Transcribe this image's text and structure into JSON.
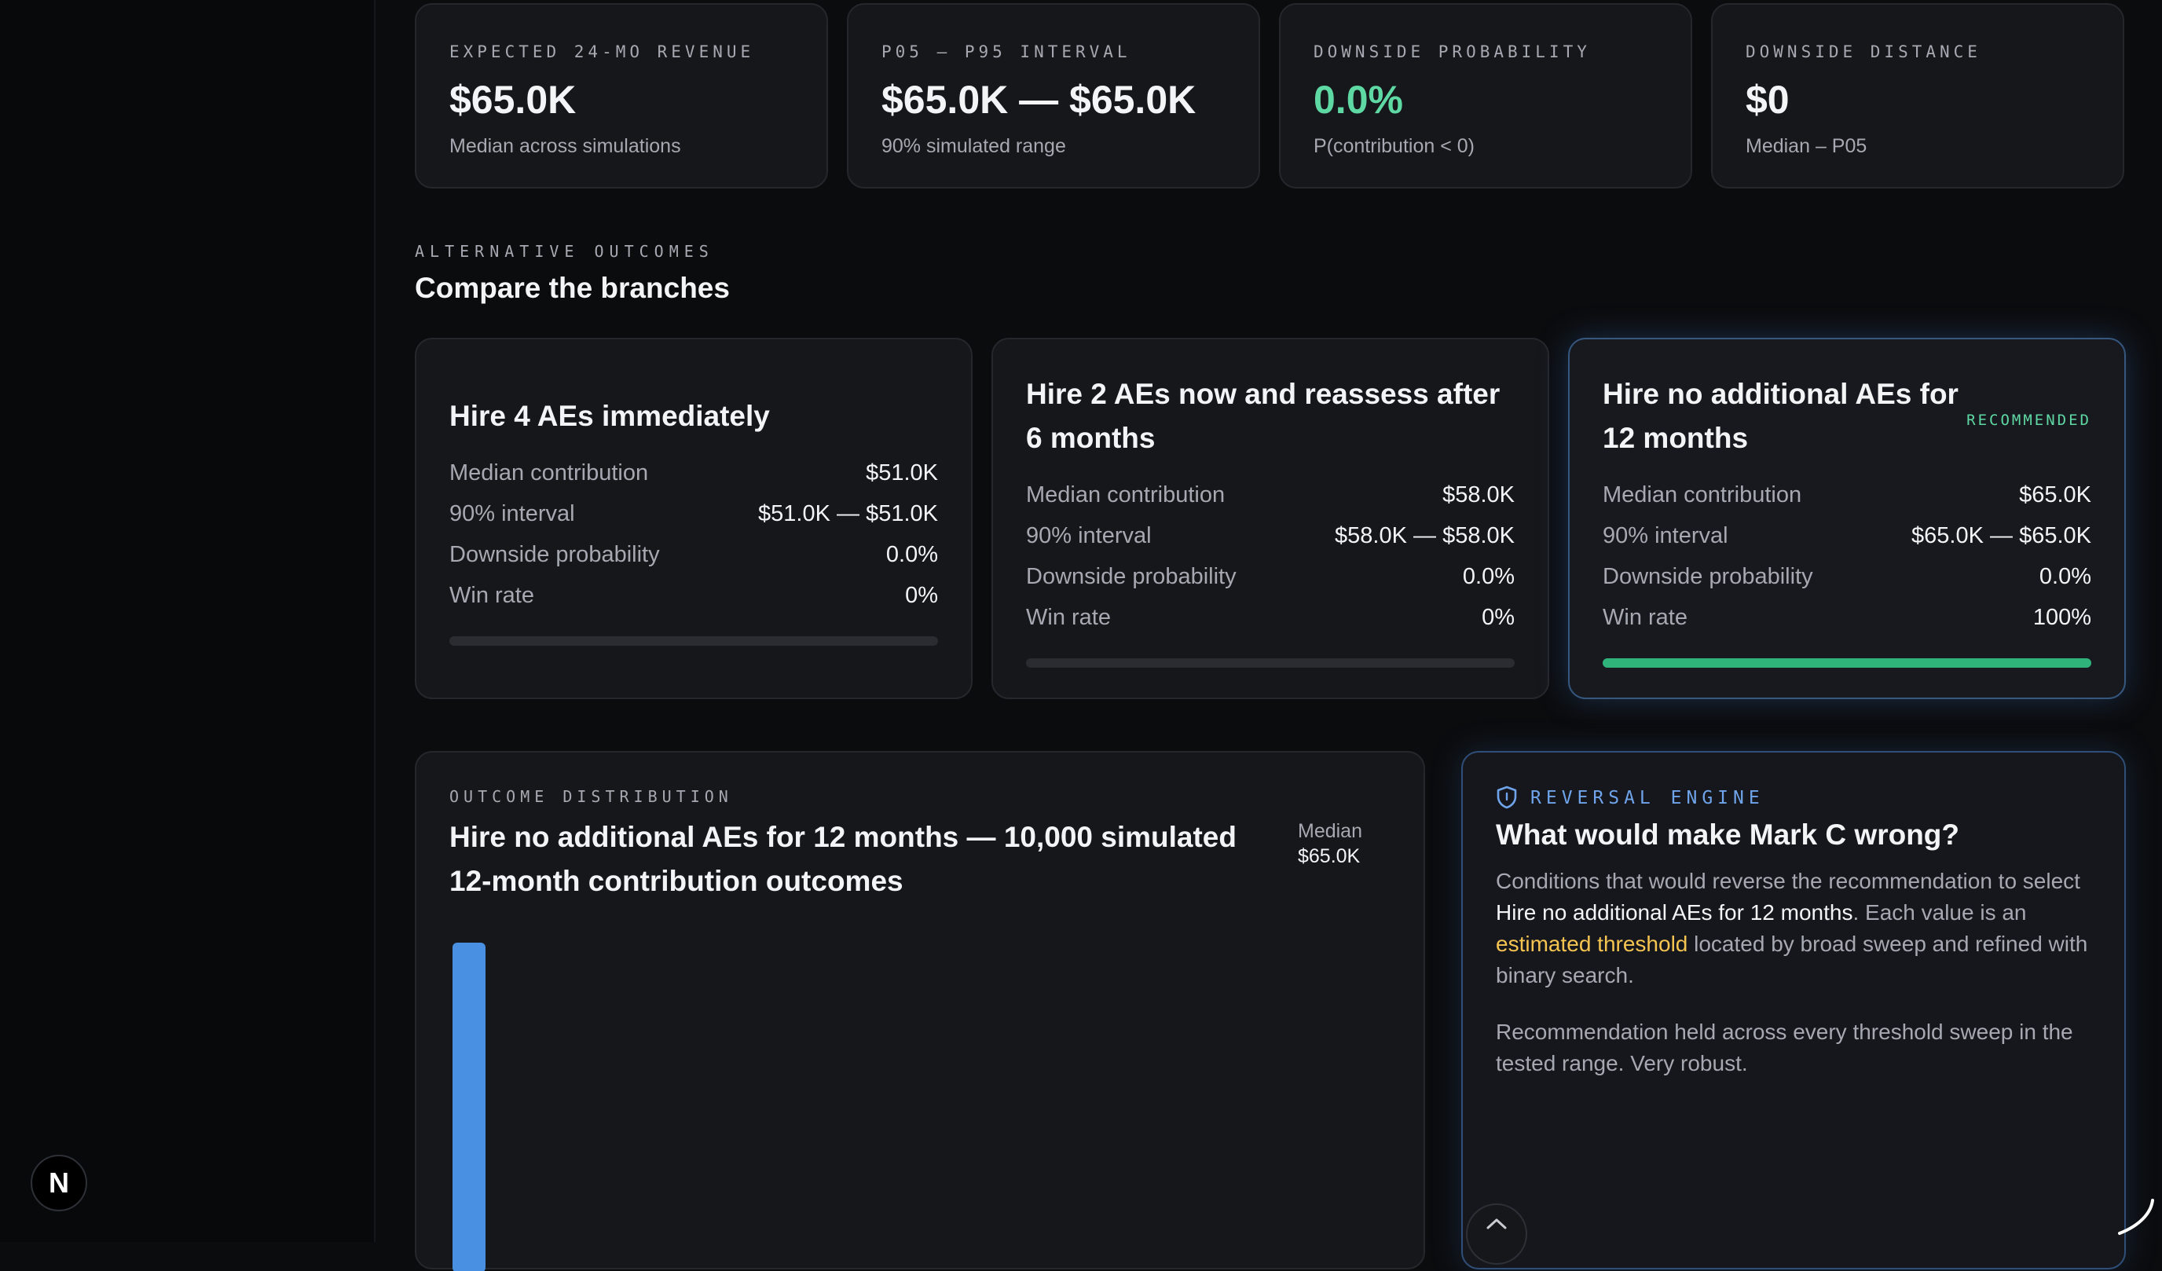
{
  "sidebar": {
    "badge": "N"
  },
  "kpis": [
    {
      "label": "EXPECTED 24-MO REVENUE",
      "value": "$65.0K",
      "sub": "Median across simulations"
    },
    {
      "label": "P05 – P95 INTERVAL",
      "value": "$65.0K — $65.0K",
      "sub": "90% simulated range"
    },
    {
      "label": "DOWNSIDE PROBABILITY",
      "value": "0.0%",
      "sub": "P(contribution < 0)"
    },
    {
      "label": "DOWNSIDE DISTANCE",
      "value": "$0",
      "sub": "Median – P05"
    }
  ],
  "section": {
    "eyebrow": "ALTERNATIVE OUTCOMES",
    "title": "Compare the branches"
  },
  "branches": [
    {
      "title": "Hire 4 AEs immediately",
      "rows": [
        {
          "k": "Median contribution",
          "v": "$51.0K"
        },
        {
          "k": "90% interval",
          "v": "$51.0K — $51.0K"
        },
        {
          "k": "Downside probability",
          "v": "0.0%"
        },
        {
          "k": "Win rate",
          "v": "0%"
        }
      ],
      "win_rate": 0
    },
    {
      "title": "Hire 2 AEs now and reassess after 6 months",
      "rows": [
        {
          "k": "Median contribution",
          "v": "$58.0K"
        },
        {
          "k": "90% interval",
          "v": "$58.0K — $58.0K"
        },
        {
          "k": "Downside probability",
          "v": "0.0%"
        },
        {
          "k": "Win rate",
          "v": "0%"
        }
      ],
      "win_rate": 0
    },
    {
      "title": "Hire no additional AEs for 12 months",
      "badge": "RECOMMENDED",
      "rows": [
        {
          "k": "Median contribution",
          "v": "$65.0K"
        },
        {
          "k": "90% interval",
          "v": "$65.0K — $65.0K"
        },
        {
          "k": "Downside probability",
          "v": "0.0%"
        },
        {
          "k": "Win rate",
          "v": "100%"
        }
      ],
      "win_rate": 1
    }
  ],
  "distribution": {
    "eyebrow": "OUTCOME DISTRIBUTION",
    "title": "Hire no additional AEs for 12 months — 10,000 simulated 12-month contribution outcomes",
    "median_label": "Median",
    "median_value": "$65.0K",
    "bar_color": "#4a90e2"
  },
  "reversal": {
    "eyebrow": "REVERSAL ENGINE",
    "title": "What would make Mark C wrong?",
    "p1_pre": "Conditions that would reverse the recommendation to select ",
    "p1_branch": "Hire no additional AEs for 12 months",
    "p1_mid": ". Each value is an ",
    "p1_threshold": "estimated threshold",
    "p1_post": " located by broad sweep and refined with binary search.",
    "p2": "Recommendation held across every threshold sweep in the tested range. Very robust."
  },
  "colors": {
    "accent_green": "#5fd9a4",
    "accent_blue": "#6fa4ea",
    "highlight_yellow": "#f5c451"
  }
}
